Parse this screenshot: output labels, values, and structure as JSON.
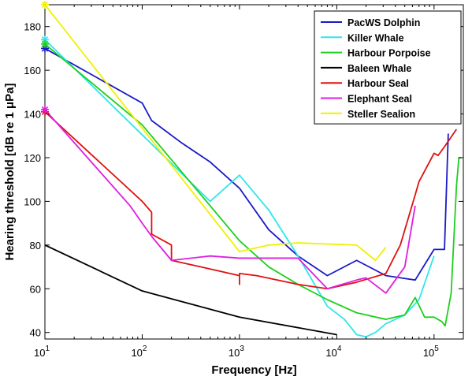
{
  "chart_data": {
    "type": "line",
    "title": "",
    "xlabel": "Frequency [Hz]",
    "ylabel": "Hearing threshold [dB re 1 μPa]",
    "xscale": "log",
    "xlim": [
      10,
      200000
    ],
    "ylim": [
      37,
      190
    ],
    "x_ticks": [
      10,
      100,
      1000,
      10000,
      100000
    ],
    "x_tick_labels": [
      {
        "base": "10",
        "exp": "1"
      },
      {
        "base": "10",
        "exp": "2"
      },
      {
        "base": "10",
        "exp": "3"
      },
      {
        "base": "10",
        "exp": "4"
      },
      {
        "base": "10",
        "exp": "5"
      }
    ],
    "y_ticks": [
      40,
      60,
      80,
      100,
      120,
      140,
      160,
      180
    ],
    "y_tick_labels": [
      "40",
      "60",
      "80",
      "100",
      "120",
      "140",
      "160",
      "180"
    ],
    "grid": false,
    "legend_position": "top-right",
    "series": [
      {
        "name": "PacWS Dolphin",
        "color": "#1a1ac8",
        "marker_at_start": true,
        "points": [
          [
            10,
            170
          ],
          [
            100,
            145
          ],
          [
            125,
            137
          ],
          [
            250,
            127
          ],
          [
            500,
            118
          ],
          [
            1000,
            106
          ],
          [
            2000,
            87
          ],
          [
            4000,
            75
          ],
          [
            8000,
            66
          ],
          [
            16000,
            73
          ],
          [
            32000,
            66
          ],
          [
            64000,
            64
          ],
          [
            100000,
            78
          ],
          [
            128000,
            78
          ],
          [
            140000,
            131
          ]
        ]
      },
      {
        "name": "Killer Whale",
        "color": "#2ee6ea",
        "marker_at_start": true,
        "points": [
          [
            10,
            174
          ],
          [
            500,
            100
          ],
          [
            1000,
            112
          ],
          [
            2000,
            96
          ],
          [
            4000,
            75
          ],
          [
            8000,
            52
          ],
          [
            12000,
            46
          ],
          [
            16000,
            39
          ],
          [
            20000,
            38
          ],
          [
            25000,
            40
          ],
          [
            32000,
            44
          ],
          [
            50000,
            48
          ],
          [
            70000,
            55
          ],
          [
            100000,
            75
          ]
        ]
      },
      {
        "name": "Harbour Porpoise",
        "color": "#1ecf1e",
        "marker_at_start": true,
        "points": [
          [
            10,
            172
          ],
          [
            100,
            135
          ],
          [
            1000,
            82
          ],
          [
            2000,
            70
          ],
          [
            4000,
            62
          ],
          [
            8000,
            55
          ],
          [
            16000,
            49
          ],
          [
            32000,
            46
          ],
          [
            50000,
            48
          ],
          [
            64000,
            56
          ],
          [
            80000,
            47
          ],
          [
            100000,
            47
          ],
          [
            120000,
            45
          ],
          [
            130000,
            43
          ],
          [
            150000,
            58
          ],
          [
            170000,
            107
          ],
          [
            180000,
            120
          ],
          [
            190000,
            120
          ]
        ]
      },
      {
        "name": "Baleen Whale",
        "color": "#000000",
        "marker_at_start": false,
        "points": [
          [
            10,
            80
          ],
          [
            100,
            59
          ],
          [
            1000,
            47
          ],
          [
            10000,
            39
          ]
        ]
      },
      {
        "name": "Harbour Seal",
        "color": "#e01010",
        "marker_at_start": true,
        "points": [
          [
            10,
            141
          ],
          [
            100,
            100
          ],
          [
            125,
            95
          ],
          [
            125,
            85
          ],
          [
            200,
            80
          ],
          [
            200,
            73
          ],
          [
            400,
            70
          ],
          [
            1000,
            66
          ],
          [
            1000,
            62
          ],
          [
            1000,
            67
          ],
          [
            1500,
            66
          ],
          [
            4000,
            62
          ],
          [
            8000,
            60
          ],
          [
            16000,
            63
          ],
          [
            32000,
            67
          ],
          [
            45000,
            80
          ],
          [
            64000,
            103
          ],
          [
            70000,
            109
          ],
          [
            100000,
            122
          ],
          [
            110000,
            121
          ],
          [
            128000,
            125
          ],
          [
            170000,
            133
          ]
        ]
      },
      {
        "name": "Elephant Seal",
        "color": "#e01ee0",
        "marker_at_start": true,
        "points": [
          [
            10,
            142
          ],
          [
            75,
            98
          ],
          [
            100,
            90
          ],
          [
            125,
            84
          ],
          [
            200,
            73
          ],
          [
            500,
            75
          ],
          [
            1000,
            74
          ],
          [
            2000,
            74
          ],
          [
            4000,
            74
          ],
          [
            8000,
            60
          ],
          [
            16000,
            64
          ],
          [
            20000,
            65
          ],
          [
            32000,
            58
          ],
          [
            50000,
            70
          ],
          [
            64000,
            98
          ]
        ]
      },
      {
        "name": "Steller Sealion",
        "color": "#f0f000",
        "marker_at_start": true,
        "points": [
          [
            10,
            190
          ],
          [
            1000,
            77
          ],
          [
            2000,
            80
          ],
          [
            4000,
            81
          ],
          [
            16000,
            80
          ],
          [
            25000,
            73
          ],
          [
            32000,
            79
          ]
        ]
      }
    ]
  }
}
